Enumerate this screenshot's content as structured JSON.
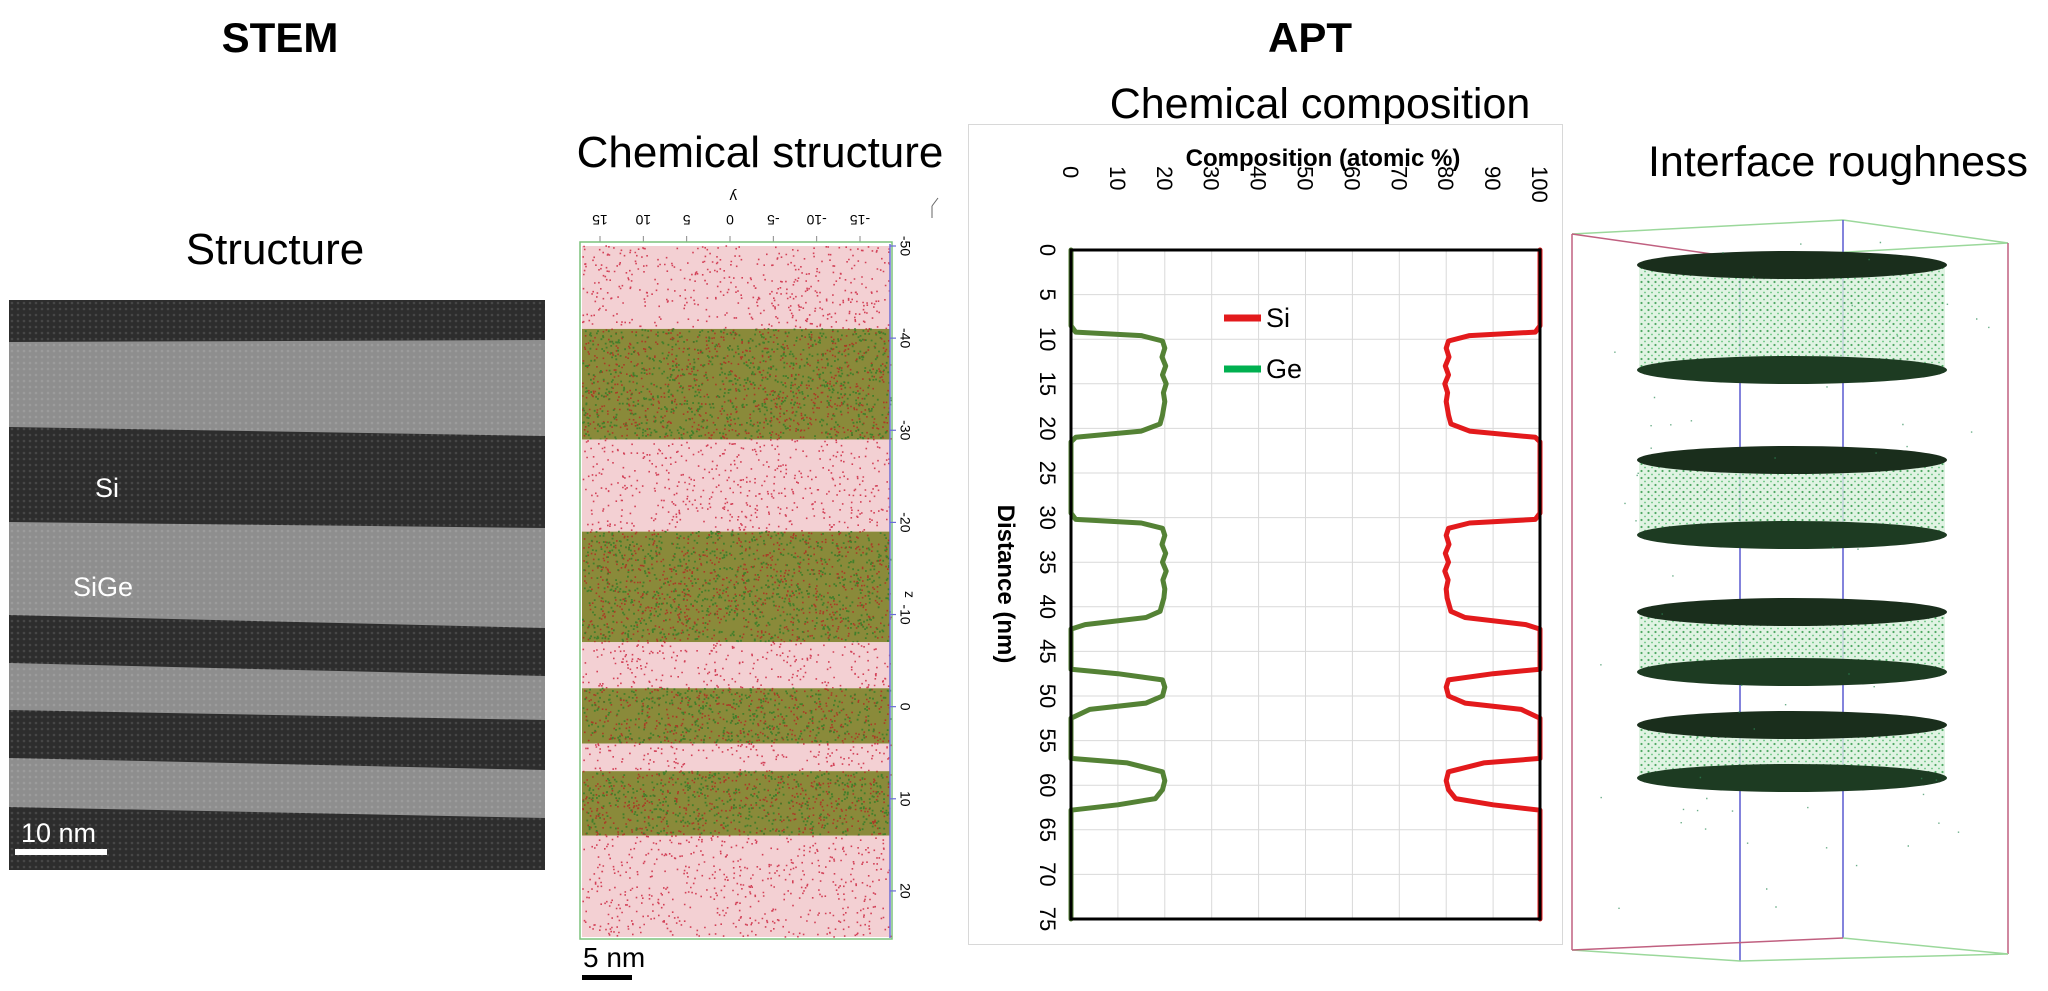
{
  "headers": {
    "stem": "STEM",
    "apt": "APT"
  },
  "stem_panel": {
    "title": "Structure",
    "labels": {
      "si": "Si",
      "sige": "SiGe"
    },
    "scale_bar": "10 nm"
  },
  "chem_structure": {
    "title": "Chemical structure",
    "scale_bar": "5 nm",
    "y_axis_label": "y",
    "z_axis_label": "z",
    "y_ticks": [
      "15",
      "10",
      "5",
      "0",
      "-5",
      "-10",
      "-15"
    ],
    "z_ticks": [
      "-50",
      "-40",
      "-30",
      "-20",
      "-10",
      "0",
      "10",
      "20"
    ]
  },
  "interface_panel": {
    "title": "Interface roughness"
  },
  "colors": {
    "si": "#e31a1c",
    "ge": "#548235",
    "ge_legend": "#00b050",
    "atom_red": "#c8102e",
    "atom_green": "#3a7d2a"
  },
  "chart_data": {
    "type": "line",
    "title": "Chemical composition",
    "xlabel": "Composition (atomic %)",
    "ylabel": "Distance (nm)",
    "xlim": [
      0,
      100
    ],
    "ylim": [
      0,
      75
    ],
    "x_ticks": [
      "0",
      "10",
      "20",
      "30",
      "40",
      "50",
      "60",
      "70",
      "80",
      "90",
      "100"
    ],
    "y_ticks": [
      "0",
      "5",
      "10",
      "15",
      "20",
      "25",
      "30",
      "35",
      "40",
      "45",
      "50",
      "55",
      "60",
      "65",
      "70",
      "75"
    ],
    "legend": [
      "Si",
      "Ge"
    ],
    "series": [
      {
        "name": "Si",
        "points": [
          [
            100,
            0
          ],
          [
            100,
            8.5
          ],
          [
            99,
            9.2
          ],
          [
            85,
            9.6
          ],
          [
            80.5,
            10.2
          ],
          [
            80,
            11
          ],
          [
            80.6,
            12
          ],
          [
            79.8,
            13
          ],
          [
            80.5,
            14
          ],
          [
            79.7,
            15
          ],
          [
            80.3,
            16
          ],
          [
            80,
            17
          ],
          [
            80.5,
            18.5
          ],
          [
            81,
            19.5
          ],
          [
            85,
            20.3
          ],
          [
            99,
            21
          ],
          [
            100,
            21.5
          ],
          [
            100,
            29.5
          ],
          [
            99,
            30.2
          ],
          [
            85,
            30.6
          ],
          [
            80.5,
            31.2
          ],
          [
            80,
            32
          ],
          [
            80.6,
            33
          ],
          [
            79.8,
            34
          ],
          [
            80.5,
            35
          ],
          [
            79.7,
            36
          ],
          [
            80.4,
            37
          ],
          [
            80,
            38
          ],
          [
            80.2,
            39
          ],
          [
            81,
            40.5
          ],
          [
            84,
            41.2
          ],
          [
            97,
            42
          ],
          [
            100,
            42.5
          ],
          [
            100,
            47
          ],
          [
            90,
            47.5
          ],
          [
            80.5,
            48.2
          ],
          [
            80,
            49
          ],
          [
            80.5,
            50
          ],
          [
            84,
            50.8
          ],
          [
            96,
            51.5
          ],
          [
            100,
            52.5
          ],
          [
            100,
            57
          ],
          [
            88,
            57.5
          ],
          [
            80.5,
            58.5
          ],
          [
            80,
            59.5
          ],
          [
            80.5,
            60.5
          ],
          [
            82,
            61.5
          ],
          [
            90,
            62.2
          ],
          [
            100,
            62.8
          ],
          [
            100,
            75
          ]
        ]
      },
      {
        "name": "Ge",
        "points": [
          [
            0,
            0
          ],
          [
            0,
            8.5
          ],
          [
            1,
            9.2
          ],
          [
            15,
            9.6
          ],
          [
            19.5,
            10.2
          ],
          [
            20,
            11
          ],
          [
            19.4,
            12
          ],
          [
            20.2,
            13
          ],
          [
            19.5,
            14
          ],
          [
            20.3,
            15
          ],
          [
            19.7,
            16
          ],
          [
            20,
            17
          ],
          [
            19.5,
            18.5
          ],
          [
            19,
            19.5
          ],
          [
            15,
            20.3
          ],
          [
            1,
            21
          ],
          [
            0,
            21.5
          ],
          [
            0,
            29.5
          ],
          [
            1,
            30.2
          ],
          [
            15,
            30.6
          ],
          [
            19.5,
            31.2
          ],
          [
            20,
            32
          ],
          [
            19.4,
            33
          ],
          [
            20.2,
            34
          ],
          [
            19.5,
            35
          ],
          [
            20.3,
            36
          ],
          [
            19.6,
            37
          ],
          [
            20,
            38
          ],
          [
            19.8,
            39
          ],
          [
            19,
            40.5
          ],
          [
            16,
            41.2
          ],
          [
            3,
            42
          ],
          [
            0,
            42.5
          ],
          [
            0,
            47
          ],
          [
            10,
            47.5
          ],
          [
            19.5,
            48.2
          ],
          [
            20,
            49
          ],
          [
            19.5,
            50
          ],
          [
            16,
            50.8
          ],
          [
            4,
            51.5
          ],
          [
            0,
            52.5
          ],
          [
            0,
            57
          ],
          [
            12,
            57.5
          ],
          [
            19.5,
            58.5
          ],
          [
            20,
            59.5
          ],
          [
            19.5,
            60.5
          ],
          [
            18,
            61.5
          ],
          [
            10,
            62.2
          ],
          [
            0,
            62.8
          ],
          [
            0,
            75
          ]
        ]
      }
    ]
  }
}
